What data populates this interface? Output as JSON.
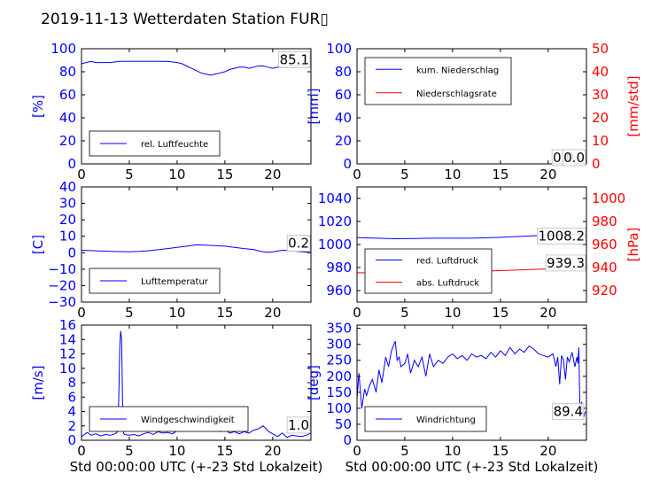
{
  "title": "2019-11-13 Wetterdaten Station FUR▯",
  "colors": {
    "left": "#0000ff",
    "right": "#ff0000",
    "axis": "#000000",
    "text": "#000000"
  },
  "chart_data": [
    {
      "id": "humidity",
      "type": "line",
      "xlim": [
        0,
        24
      ],
      "xticks": [
        0,
        5,
        10,
        15,
        20
      ],
      "ylim": [
        0,
        100
      ],
      "yticks": [
        0,
        20,
        40,
        60,
        80,
        100
      ],
      "ytick_labels": [
        "0",
        "20",
        "40",
        "60",
        "80",
        "100"
      ],
      "ylabel": "[%]",
      "legend": "lower-left",
      "callout": "85.1",
      "series": [
        {
          "name": "rel. Luftfeuchte",
          "color": "#0000ff",
          "axis": "left",
          "x": [
            0,
            0.5,
            1,
            1.5,
            2,
            3,
            4,
            5,
            6,
            7,
            8,
            9,
            10,
            10.5,
            11,
            11.5,
            12,
            12.5,
            13,
            13.5,
            14,
            14.5,
            15,
            15.5,
            16,
            16.5,
            17,
            17.5,
            18,
            18.5,
            19,
            19.5,
            20,
            20.5,
            21,
            21.5,
            22,
            22.5,
            23,
            23.5,
            24
          ],
          "y": [
            87,
            88,
            89,
            88,
            88,
            88,
            89,
            89,
            89,
            89,
            89,
            89,
            88,
            87,
            85,
            83,
            81,
            79,
            78,
            77,
            78,
            79,
            80,
            82,
            83,
            84,
            84,
            83,
            84,
            85,
            85,
            84,
            83,
            84,
            84,
            85,
            86,
            85,
            86,
            85,
            85
          ]
        }
      ]
    },
    {
      "id": "precipitation",
      "type": "line",
      "xlim": [
        0,
        24
      ],
      "xticks": [
        0,
        5,
        10,
        15,
        20
      ],
      "ylim": [
        0,
        100
      ],
      "yticks": [
        0,
        20,
        40,
        60,
        80,
        100
      ],
      "ytick_labels": [
        "0",
        "20",
        "40",
        "60",
        "80",
        "100"
      ],
      "ylabel": "[mm]",
      "y2lim": [
        0,
        50
      ],
      "y2ticks": [
        0,
        10,
        20,
        30,
        40,
        50
      ],
      "y2tick_labels": [
        "0",
        "10",
        "20",
        "30",
        "40",
        "50"
      ],
      "y2label": "[mm/std]",
      "legend": "upper-left",
      "callout": "0.0",
      "callout2": "0.0",
      "series": [
        {
          "name": "kum. Niederschlag",
          "color": "#0000ff",
          "axis": "left",
          "x": [
            0,
            24
          ],
          "y": [
            0,
            0
          ]
        },
        {
          "name": "Niederschlagsrate",
          "color": "#ff0000",
          "axis": "right",
          "x": [
            0,
            24
          ],
          "y": [
            0,
            0
          ]
        }
      ]
    },
    {
      "id": "temperature",
      "type": "line",
      "xlim": [
        0,
        24
      ],
      "xticks": [
        0,
        5,
        10,
        15,
        20
      ],
      "ylim": [
        -30,
        40
      ],
      "yticks": [
        -30,
        -20,
        -10,
        0,
        10,
        20,
        30,
        40
      ],
      "ytick_labels": [
        "−30",
        "−20",
        "−10",
        "0",
        "10",
        "20",
        "30",
        "40"
      ],
      "ylabel": "[C]",
      "legend": "lower-left",
      "callout": "0.2",
      "series": [
        {
          "name": "Lufttemperatur",
          "color": "#0000ff",
          "axis": "left",
          "x": [
            0,
            1,
            2,
            3,
            4,
            5,
            6,
            7,
            8,
            9,
            10,
            11,
            12,
            13,
            14,
            15,
            16,
            17,
            18,
            18.5,
            19,
            19.5,
            20,
            21,
            22,
            23,
            24
          ],
          "y": [
            1.5,
            1.3,
            1.0,
            0.8,
            0.7,
            0.6,
            0.8,
            1.2,
            1.8,
            2.5,
            3.2,
            4.0,
            4.8,
            4.6,
            4.3,
            4.0,
            3.2,
            2.5,
            2.0,
            1.2,
            0.6,
            0.3,
            0.5,
            1.5,
            1.2,
            0.6,
            0.2
          ]
        }
      ]
    },
    {
      "id": "pressure",
      "type": "line",
      "xlim": [
        0,
        24
      ],
      "xticks": [
        0,
        5,
        10,
        15,
        20
      ],
      "ylim": [
        950,
        1050
      ],
      "yticks": [
        960,
        980,
        1000,
        1020,
        1040
      ],
      "ytick_labels": [
        "960",
        "980",
        "1000",
        "1020",
        "1040"
      ],
      "ylabel": "",
      "y2lim": [
        910,
        1010
      ],
      "y2ticks": [
        920,
        940,
        960,
        980,
        1000
      ],
      "y2tick_labels": [
        "920",
        "940",
        "960",
        "980",
        "1000"
      ],
      "y2label": "[hPa]",
      "legend": "lower-left",
      "callout": "1008.2",
      "callout2": "939.3",
      "series": [
        {
          "name": "red. Luftdruck",
          "color": "#0000ff",
          "axis": "left",
          "x": [
            0,
            2,
            4,
            6,
            8,
            10,
            12,
            14,
            15,
            16,
            17,
            18,
            19,
            20,
            21,
            22,
            23,
            24
          ],
          "y": [
            1006,
            1005.5,
            1005,
            1005.2,
            1005.5,
            1005.5,
            1005.5,
            1006,
            1006.2,
            1006.6,
            1007,
            1007.4,
            1007.8,
            1008,
            1008.1,
            1008.2,
            1008.2,
            1008.2
          ]
        },
        {
          "name": "abs. Luftdruck",
          "color": "#ff0000",
          "axis": "right",
          "x": [
            0,
            2,
            4,
            6,
            8,
            10,
            12,
            14,
            16,
            18,
            20,
            22,
            24
          ],
          "y": [
            935.5,
            935.3,
            935.2,
            935.5,
            935.8,
            936.1,
            936.5,
            937,
            937.6,
            938.3,
            938.8,
            939.2,
            939.3
          ]
        }
      ]
    },
    {
      "id": "windspeed",
      "type": "line",
      "xlim": [
        0,
        24
      ],
      "xticks": [
        0,
        5,
        10,
        15,
        20
      ],
      "ylim": [
        0,
        16
      ],
      "yticks": [
        0,
        2,
        4,
        6,
        8,
        10,
        12,
        14,
        16
      ],
      "ytick_labels": [
        "0",
        "2",
        "4",
        "6",
        "8",
        "10",
        "12",
        "14",
        "16"
      ],
      "ylabel": "[m/s]",
      "legend": "lower-left",
      "callout": "1.0",
      "series": [
        {
          "name": "Windgeschwindigkeit",
          "color": "#0000ff",
          "axis": "left",
          "x": [
            0,
            0.3,
            0.6,
            1,
            1.5,
            2,
            2.5,
            3,
            3.5,
            3.8,
            3.9,
            4.0,
            4.1,
            4.2,
            4.3,
            4.4,
            4.5,
            5,
            5.5,
            6,
            6.5,
            7,
            7.5,
            8,
            8.5,
            9,
            9.5,
            10,
            10.5,
            11,
            11.5,
            12,
            12.5,
            13,
            13.5,
            14,
            14.5,
            15,
            15.5,
            16,
            16.5,
            17,
            17.5,
            18,
            18.5,
            19,
            19.3,
            19.6,
            20,
            20.5,
            21,
            21.5,
            22,
            22.5,
            23,
            23.5,
            24
          ],
          "y": [
            0.5,
            0.8,
            1.1,
            0.7,
            0.9,
            0.6,
            0.8,
            0.7,
            0.9,
            1.2,
            6,
            13,
            15.2,
            14,
            5,
            1.0,
            0.8,
            0.7,
            0.8,
            0.6,
            0.9,
            1.1,
            0.8,
            1.2,
            1.0,
            1.1,
            0.9,
            1.3,
            1.8,
            2.0,
            1.6,
            2.2,
            1.8,
            2.0,
            1.5,
            1.8,
            1.2,
            1.5,
            1.0,
            1.2,
            0.9,
            1.2,
            1.0,
            1.4,
            1.6,
            2.0,
            1.6,
            1.2,
            0.9,
            0.5,
            1.0,
            0.4,
            0.7,
            0.6,
            0.5,
            0.7,
            1.0
          ]
        }
      ]
    },
    {
      "id": "winddirection",
      "type": "line",
      "xlim": [
        0,
        24
      ],
      "xticks": [
        0,
        5,
        10,
        15,
        20
      ],
      "ylim": [
        0,
        360
      ],
      "yticks": [
        0,
        50,
        100,
        150,
        200,
        250,
        300,
        350
      ],
      "ytick_labels": [
        "0",
        "50",
        "100",
        "150",
        "200",
        "250",
        "300",
        "350"
      ],
      "ylabel": "[deg]",
      "legend": "lower-left",
      "callout": "89.4",
      "series": [
        {
          "name": "Windrichtung",
          "color": "#0000ff",
          "axis": "left",
          "x": [
            0,
            0.2,
            0.5,
            0.8,
            1,
            1.3,
            1.6,
            2,
            2.3,
            2.6,
            3,
            3.3,
            3.6,
            4,
            4.2,
            4.4,
            4.6,
            5,
            5.3,
            5.6,
            6,
            6.4,
            6.8,
            7.2,
            7.6,
            8,
            8.5,
            9,
            9.5,
            10,
            10.5,
            11,
            11.5,
            12,
            12.5,
            13,
            13.5,
            14,
            14.5,
            15,
            15.5,
            16,
            16.5,
            17,
            17.5,
            18,
            18.5,
            19,
            19.5,
            20,
            20.5,
            20.8,
            21,
            21.2,
            21.4,
            21.6,
            21.8,
            22,
            22.2,
            22.5,
            22.8,
            23,
            23.1,
            23.2,
            23.3,
            23.4,
            23.5,
            23.7,
            23.9
          ],
          "y": [
            130,
            210,
            100,
            160,
            140,
            170,
            190,
            150,
            220,
            180,
            260,
            230,
            280,
            310,
            250,
            260,
            230,
            240,
            270,
            210,
            250,
            230,
            260,
            200,
            270,
            230,
            250,
            240,
            260,
            270,
            255,
            265,
            250,
            270,
            260,
            265,
            255,
            275,
            260,
            280,
            265,
            290,
            270,
            285,
            275,
            295,
            285,
            270,
            265,
            260,
            270,
            230,
            260,
            175,
            265,
            250,
            190,
            260,
            245,
            275,
            230,
            260,
            240,
            290,
            130,
            80,
            120,
            70,
            90
          ]
        }
      ]
    }
  ],
  "xlabel_bottom": "Std 00:00:00 UTC (+-23 Std Lokalzeit)"
}
